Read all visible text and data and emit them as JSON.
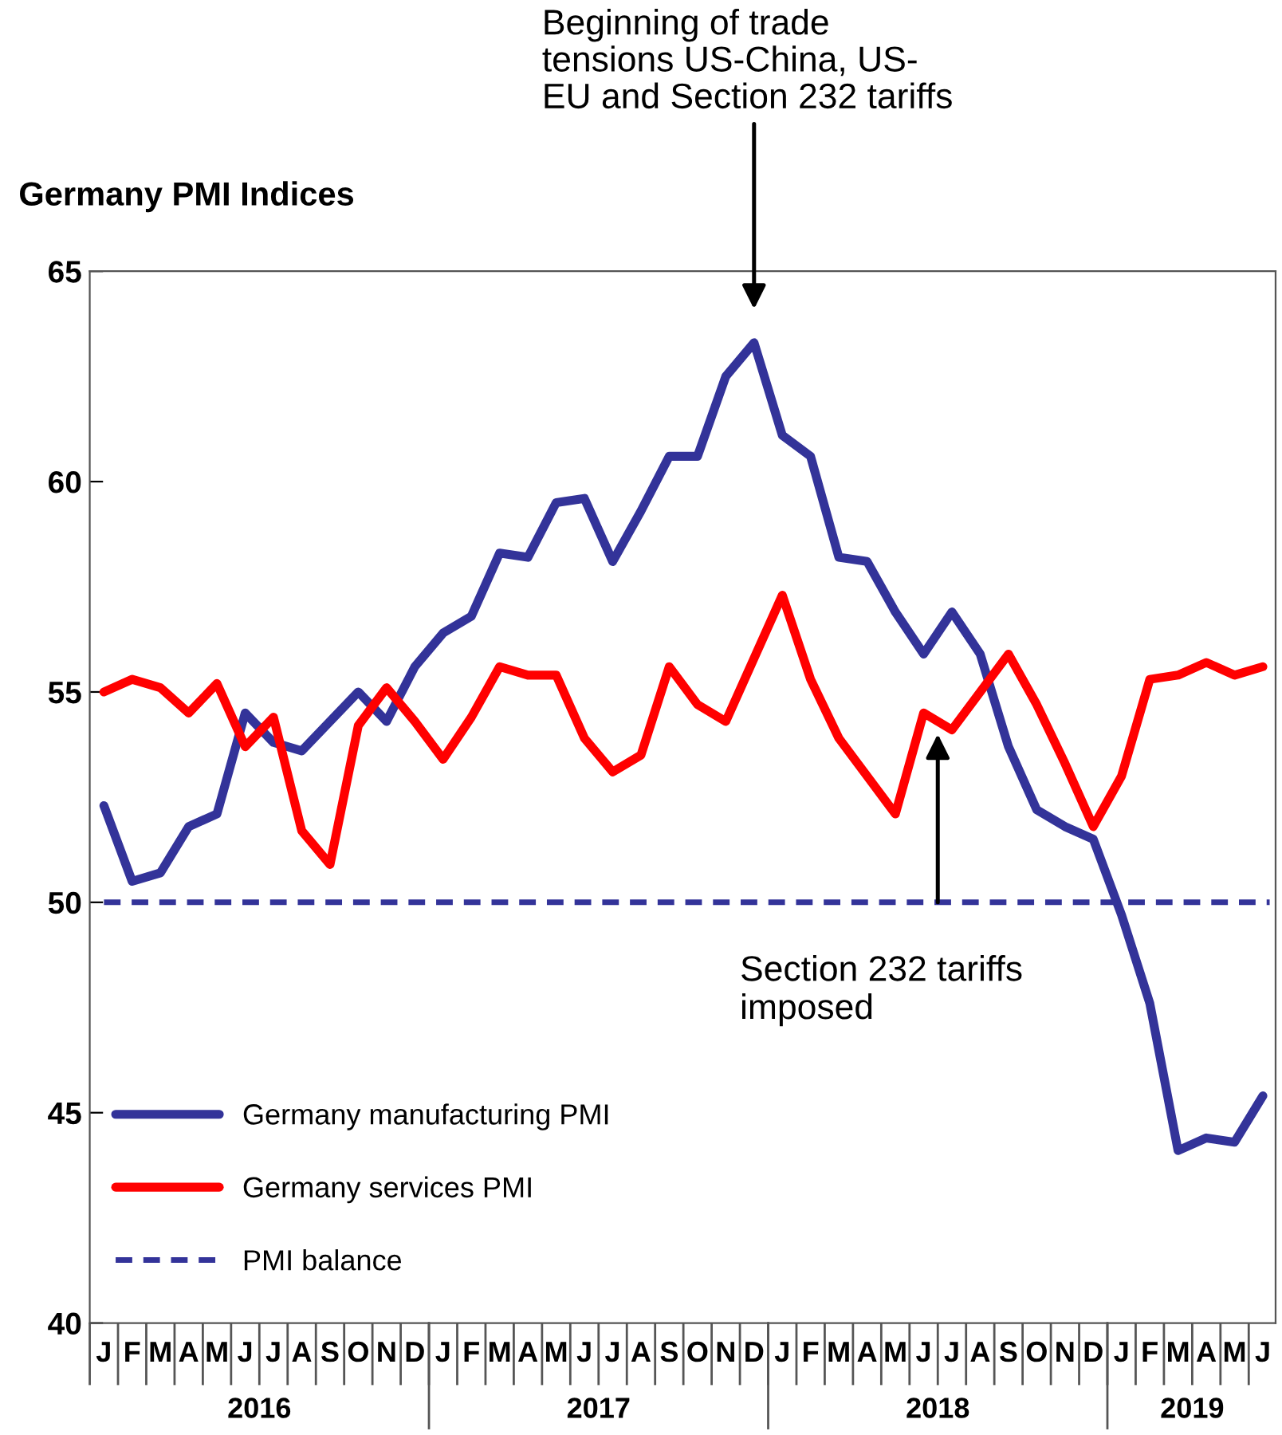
{
  "chart_data": {
    "type": "line",
    "title": "Germany PMI Indices",
    "categories": [
      "J",
      "F",
      "M",
      "A",
      "M",
      "J",
      "J",
      "A",
      "S",
      "O",
      "N",
      "D",
      "J",
      "F",
      "M",
      "A",
      "M",
      "J",
      "J",
      "A",
      "S",
      "O",
      "N",
      "D",
      "J",
      "F",
      "M",
      "A",
      "M",
      "J",
      "J",
      "A",
      "S",
      "O",
      "N",
      "D",
      "J",
      "F",
      "M",
      "A",
      "M",
      "J"
    ],
    "series": [
      {
        "name": "Germany manufacturing PMI",
        "color": "#333399",
        "values": [
          52.3,
          50.5,
          50.7,
          51.8,
          52.1,
          54.5,
          53.8,
          53.6,
          54.3,
          55.0,
          54.3,
          55.6,
          56.4,
          56.8,
          58.3,
          58.2,
          59.5,
          59.6,
          58.1,
          59.3,
          60.6,
          60.6,
          62.5,
          63.3,
          61.1,
          60.6,
          58.2,
          58.1,
          56.9,
          55.9,
          56.9,
          55.9,
          53.7,
          52.2,
          51.8,
          51.5,
          49.7,
          47.6,
          44.1,
          44.4,
          44.3,
          45.4
        ]
      },
      {
        "name": "Germany services PMI",
        "color": "#ff0000",
        "values": [
          55.0,
          55.3,
          55.1,
          54.5,
          55.2,
          53.7,
          54.4,
          51.7,
          50.9,
          54.2,
          55.1,
          54.3,
          53.4,
          54.4,
          55.6,
          55.4,
          55.4,
          53.9,
          53.1,
          53.5,
          55.6,
          54.7,
          54.3,
          55.8,
          57.3,
          55.3,
          53.9,
          53.0,
          52.1,
          54.5,
          54.1,
          55.0,
          55.9,
          54.7,
          53.3,
          51.8,
          53.0,
          55.3,
          55.4,
          55.7,
          55.4,
          55.6
        ]
      }
    ],
    "ref_lines": [
      {
        "axis": "y",
        "value": 50,
        "label": "PMI balance",
        "color": "#333399",
        "line_style": "dashed"
      }
    ],
    "annotations": [
      "Beginning of trade\ntensions US-China, US-\nEU and Section 232 tariffs",
      "Section 232 tariffs\nimposed",
      "2016",
      "2017",
      "2018",
      "2019"
    ],
    "ylim": [
      40,
      65
    ],
    "yticks": [
      40,
      45,
      50,
      55,
      60,
      65
    ],
    "grid": false,
    "legend": "bottom left",
    "marker": "none",
    "line_style": "solid"
  }
}
